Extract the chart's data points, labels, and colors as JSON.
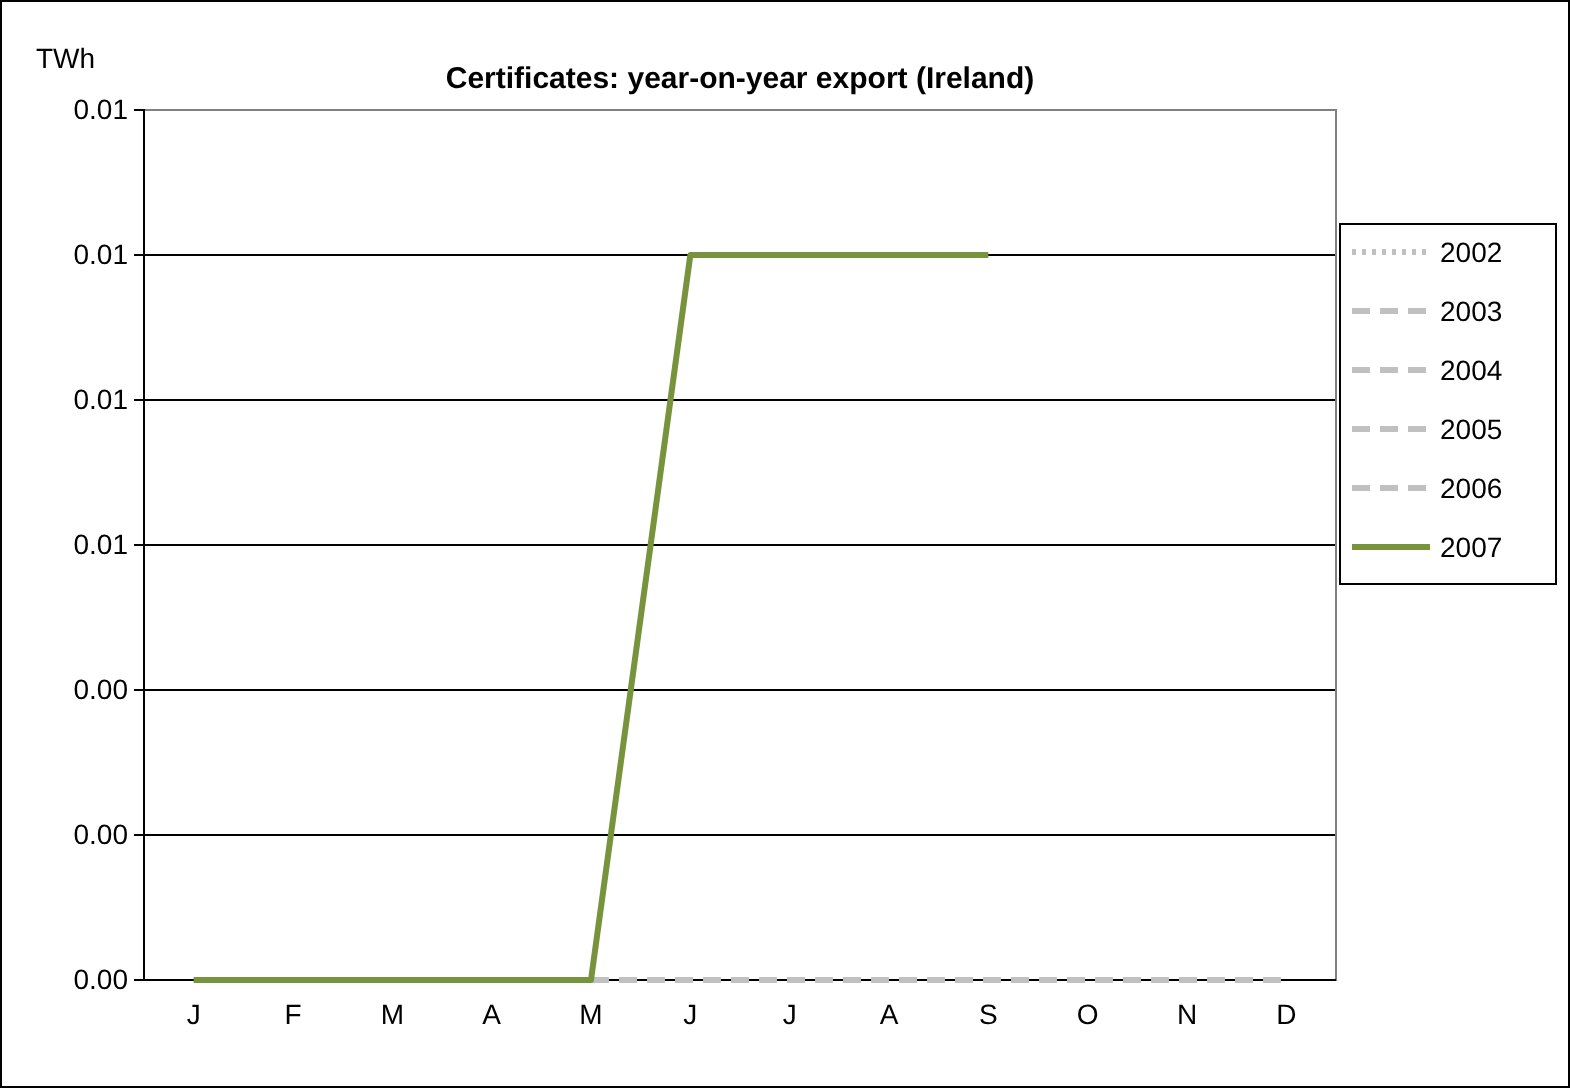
{
  "chart_data": {
    "type": "line",
    "title": "Certificates: year-on-year export (Ireland)",
    "ylabel": "TWh",
    "categories": [
      "J",
      "F",
      "M",
      "A",
      "M",
      "J",
      "J",
      "A",
      "S",
      "O",
      "N",
      "D"
    ],
    "ylim": [
      0,
      0.012
    ],
    "yticks": [
      {
        "value": 0,
        "label": "0.00"
      },
      {
        "value": 0.002,
        "label": "0.00"
      },
      {
        "value": 0.004,
        "label": "0.00"
      },
      {
        "value": 0.006,
        "label": "0.01"
      },
      {
        "value": 0.008,
        "label": "0.01"
      },
      {
        "value": 0.01,
        "label": "0.01"
      },
      {
        "value": 0.012,
        "label": "0.01"
      }
    ],
    "grid": "y",
    "legend": "right",
    "marker": "none",
    "series": [
      {
        "name": "2002",
        "color": "#c0c0c0",
        "line_style": "dotted",
        "values": [
          null,
          null,
          null,
          null,
          null,
          null,
          null,
          null,
          null,
          null,
          null,
          null
        ]
      },
      {
        "name": "2003",
        "color": "#c0c0c0",
        "line_style": "dashed",
        "values": [
          null,
          null,
          null,
          null,
          null,
          null,
          null,
          null,
          null,
          null,
          null,
          null
        ]
      },
      {
        "name": "2004",
        "color": "#c0c0c0",
        "line_style": "dashed",
        "values": [
          null,
          null,
          null,
          null,
          null,
          null,
          null,
          null,
          null,
          null,
          null,
          null
        ]
      },
      {
        "name": "2005",
        "color": "#c0c0c0",
        "line_style": "dashed",
        "values": [
          null,
          null,
          null,
          null,
          null,
          null,
          null,
          null,
          null,
          null,
          null,
          null
        ]
      },
      {
        "name": "2006",
        "color": "#c0c0c0",
        "line_style": "dashed",
        "values": [
          null,
          null,
          null,
          null,
          0,
          0,
          0,
          0,
          0,
          0,
          0,
          0
        ]
      },
      {
        "name": "2007",
        "color": "#77933c",
        "line_style": "solid",
        "values": [
          0,
          0,
          0,
          0,
          0,
          0.01,
          0.01,
          0.01,
          0.01,
          null,
          null,
          null
        ]
      }
    ]
  }
}
